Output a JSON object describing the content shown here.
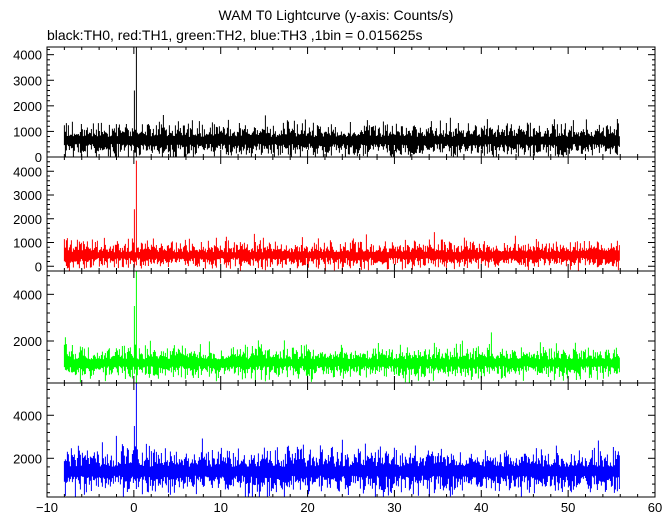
{
  "title": "WAM T0 Lightcurve (y-axis: Counts/s)",
  "subtitle": "black:TH0, red:TH1, green:TH2, blue:TH3 ,1bin = 0.015625s",
  "chart_data": [
    {
      "type": "line",
      "series": [
        {
          "name": "TH0",
          "color": "#000000",
          "baseline": 650,
          "noise": 270,
          "spike_peak": 4300,
          "spike_secondary": 2600
        }
      ],
      "xlim": [
        -10,
        60
      ],
      "ylim": [
        0,
        4300
      ],
      "x_range": [
        -8,
        56
      ],
      "yticks": [
        0,
        1000,
        2000,
        3000,
        4000
      ],
      "ytick_labels": [
        "0",
        "1000",
        "2000",
        "3000",
        "4000"
      ],
      "spike_x": 0.25
    },
    {
      "type": "line",
      "series": [
        {
          "name": "TH1",
          "color": "#ff0000",
          "baseline": 470,
          "noise": 230,
          "spike_peak": 4450,
          "spike_secondary": 2400
        }
      ],
      "xlim": [
        -10,
        60
      ],
      "ylim": [
        -200,
        4600
      ],
      "x_range": [
        -8,
        56
      ],
      "yticks": [
        0,
        1000,
        2000,
        3000,
        4000
      ],
      "ytick_labels": [
        "0",
        "1000",
        "2000",
        "3000",
        "4000"
      ],
      "spike_x": 0.25
    },
    {
      "type": "line",
      "series": [
        {
          "name": "TH2",
          "color": "#00ff00",
          "baseline": 1070,
          "noise": 280,
          "spike_peak": 5000,
          "spike_secondary": 3500
        }
      ],
      "xlim": [
        -10,
        60
      ],
      "ylim": [
        200,
        5000
      ],
      "x_range": [
        -8,
        56
      ],
      "yticks": [
        2000,
        4000
      ],
      "ytick_labels": [
        "2000",
        "4000"
      ],
      "spike_x": 0.3
    },
    {
      "type": "line",
      "series": [
        {
          "name": "TH3",
          "color": "#0000ff",
          "baseline": 1400,
          "noise": 420,
          "spike_peak": 5500,
          "spike_secondary": 3500
        }
      ],
      "xlim": [
        -10,
        60
      ],
      "ylim": [
        200,
        5500
      ],
      "x_range": [
        -8,
        56
      ],
      "yticks": [
        2000,
        4000
      ],
      "ytick_labels": [
        "2000",
        "4000"
      ],
      "xticks": [
        -10,
        0,
        10,
        20,
        30,
        40,
        50,
        60
      ],
      "xtick_labels": [
        "−10",
        "0",
        "10",
        "20",
        "30",
        "40",
        "50",
        "60"
      ],
      "spike_x": 0.3
    }
  ]
}
